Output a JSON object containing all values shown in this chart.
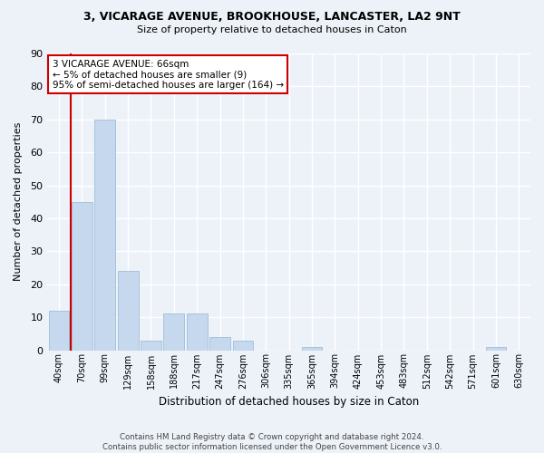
{
  "title1": "3, VICARAGE AVENUE, BROOKHOUSE, LANCASTER, LA2 9NT",
  "title2": "Size of property relative to detached houses in Caton",
  "xlabel": "Distribution of detached houses by size in Caton",
  "ylabel": "Number of detached properties",
  "categories": [
    "40sqm",
    "70sqm",
    "99sqm",
    "129sqm",
    "158sqm",
    "188sqm",
    "217sqm",
    "247sqm",
    "276sqm",
    "306sqm",
    "335sqm",
    "365sqm",
    "394sqm",
    "424sqm",
    "453sqm",
    "483sqm",
    "512sqm",
    "542sqm",
    "571sqm",
    "601sqm",
    "630sqm"
  ],
  "values": [
    12,
    45,
    70,
    24,
    3,
    11,
    11,
    4,
    3,
    0,
    0,
    1,
    0,
    0,
    0,
    0,
    0,
    0,
    0,
    1,
    0
  ],
  "bar_color": "#c5d8ed",
  "bar_edge_color": "#a0bdd8",
  "marker_color": "#cc0000",
  "annotation_text": "3 VICARAGE AVENUE: 66sqm\n← 5% of detached houses are smaller (9)\n95% of semi-detached houses are larger (164) →",
  "annotation_box_color": "#ffffff",
  "annotation_border_color": "#cc0000",
  "ylim": [
    0,
    90
  ],
  "yticks": [
    0,
    10,
    20,
    30,
    40,
    50,
    60,
    70,
    80,
    90
  ],
  "footnote": "Contains HM Land Registry data © Crown copyright and database right 2024.\nContains public sector information licensed under the Open Government Licence v3.0.",
  "bg_color": "#edf2f9",
  "grid_color": "#ffffff"
}
